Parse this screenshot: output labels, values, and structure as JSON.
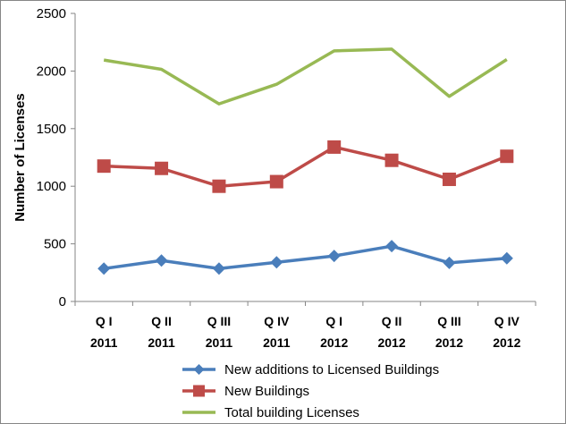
{
  "chart_data": {
    "type": "line",
    "title": "",
    "xlabel": "",
    "ylabel": "Number of Licenses",
    "ylim": [
      0,
      2500
    ],
    "yticks": [
      "0",
      "500",
      "1000",
      "1500",
      "2000",
      "2500"
    ],
    "categories": [
      [
        "Q I",
        "2011"
      ],
      [
        "Q II",
        "2011"
      ],
      [
        "Q III",
        "2011"
      ],
      [
        "Q IV",
        "2011"
      ],
      [
        "Q I",
        "2012"
      ],
      [
        "Q II",
        "2012"
      ],
      [
        "Q III",
        "2012"
      ],
      [
        "Q IV",
        "2012"
      ]
    ],
    "series": [
      {
        "name": "New additions to Licensed Buildings",
        "values": [
          285,
          355,
          285,
          340,
          395,
          480,
          335,
          375
        ],
        "color": "#4a7ebb",
        "marker": "diamond"
      },
      {
        "name": "New Buildings",
        "values": [
          1175,
          1155,
          1000,
          1040,
          1340,
          1225,
          1060,
          1260
        ],
        "color": "#be4b48",
        "marker": "square"
      },
      {
        "name": "Total building Licenses",
        "values": [
          2095,
          2015,
          1715,
          1885,
          2175,
          2190,
          1780,
          2100
        ],
        "color": "#98b954",
        "marker": "none"
      }
    ],
    "grid": false,
    "legend_position": "bottom"
  }
}
